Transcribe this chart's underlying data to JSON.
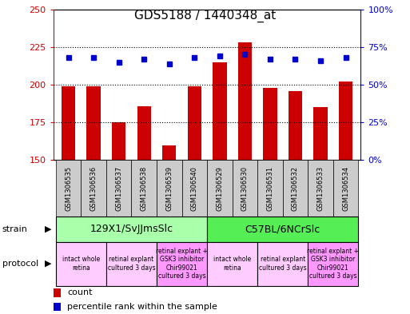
{
  "title": "GDS5188 / 1440348_at",
  "samples": [
    "GSM1306535",
    "GSM1306536",
    "GSM1306537",
    "GSM1306538",
    "GSM1306539",
    "GSM1306540",
    "GSM1306529",
    "GSM1306530",
    "GSM1306531",
    "GSM1306532",
    "GSM1306533",
    "GSM1306534"
  ],
  "counts": [
    199,
    199,
    175,
    186,
    160,
    199,
    215,
    228,
    198,
    196,
    185,
    202
  ],
  "percentiles": [
    68,
    68,
    65,
    67,
    64,
    68,
    69,
    70,
    67,
    67,
    66,
    68
  ],
  "ylim_left": [
    150,
    250
  ],
  "ylim_right": [
    0,
    100
  ],
  "yticks_left": [
    150,
    175,
    200,
    225,
    250
  ],
  "yticks_right": [
    0,
    25,
    50,
    75,
    100
  ],
  "bar_color": "#cc0000",
  "dot_color": "#0000cc",
  "bg_color": "#ffffff",
  "plot_bg": "#ffffff",
  "title_color": "#000000",
  "left_axis_color": "#cc0000",
  "right_axis_color": "#0000cc",
  "strain_groups": [
    {
      "label": "129X1/SvJJmsSlc",
      "start": 0,
      "end": 6,
      "color": "#aaffaa"
    },
    {
      "label": "C57BL/6NCrSlc",
      "start": 6,
      "end": 12,
      "color": "#55ee55"
    }
  ],
  "protocol_groups": [
    {
      "label": "intact whole\nretina",
      "start": 0,
      "end": 2,
      "color": "#ffccff"
    },
    {
      "label": "retinal explant\ncultured 3 days",
      "start": 2,
      "end": 4,
      "color": "#ffccff"
    },
    {
      "label": "retinal explant +\nGSK3 inhibitor\nChir99021\ncultured 3 days",
      "start": 4,
      "end": 6,
      "color": "#ff99ff"
    },
    {
      "label": "intact whole\nretina",
      "start": 6,
      "end": 8,
      "color": "#ffccff"
    },
    {
      "label": "retinal explant\ncultured 3 days",
      "start": 8,
      "end": 10,
      "color": "#ffccff"
    },
    {
      "label": "retinal explant +\nGSK3 inhibitor\nChir99021\ncultured 3 days",
      "start": 10,
      "end": 12,
      "color": "#ff99ff"
    }
  ],
  "figsize": [
    5.13,
    3.93
  ],
  "dpi": 100
}
